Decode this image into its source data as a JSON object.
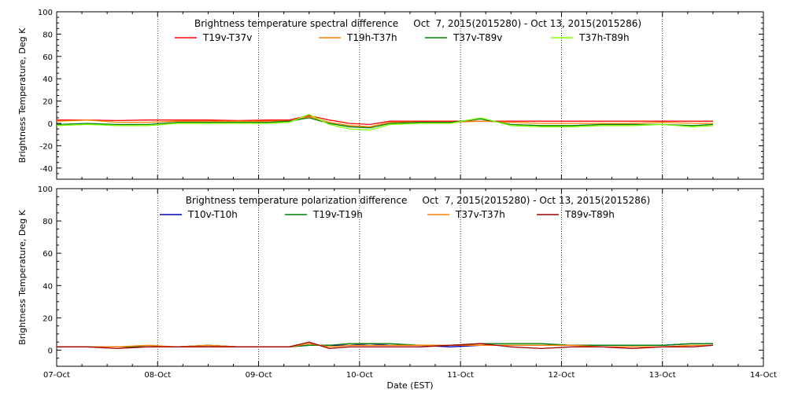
{
  "chart_data": [
    {
      "type": "line",
      "title": "Brightness temperature spectral difference     Oct  7, 2015(2015280) - Oct 13, 2015(2015286)",
      "ylabel": "Brightness Temperature, Deg K",
      "xlabel": "",
      "ylim": [
        -50,
        100
      ],
      "yticks": [
        -40,
        -20,
        0,
        20,
        40,
        60,
        80,
        100
      ],
      "xlim": [
        0,
        7
      ],
      "x_tick_labels": [
        "07-Oct",
        "08-Oct",
        "09-Oct",
        "10-Oct",
        "11-Oct",
        "12-Oct",
        "13-Oct",
        "14-Oct"
      ],
      "grid": "vertical dotted at day boundaries",
      "legend_position": "top",
      "x_units": "days since 07-Oct 00:00",
      "series": [
        {
          "name": "T19v-T37v",
          "color": "#ff0000",
          "x": [
            0,
            0.3,
            0.6,
            0.9,
            1.2,
            1.5,
            1.8,
            2.1,
            2.3,
            2.5,
            2.7,
            2.9,
            3.1,
            3.3,
            3.6,
            3.9,
            4.2,
            4.5,
            4.8,
            5.1,
            5.4,
            5.7,
            6.0,
            6.3,
            6.5
          ],
          "y": [
            3,
            3,
            2.5,
            3,
            3,
            3,
            2.5,
            3,
            3,
            7,
            3,
            0,
            -1,
            2,
            2,
            2,
            2,
            2,
            2,
            2,
            2,
            2,
            2,
            2,
            2
          ]
        },
        {
          "name": "T19h-T37h",
          "color": "#ff8000",
          "x": [
            0,
            0.3,
            0.6,
            0.9,
            1.2,
            1.5,
            1.8,
            2.1,
            2.3,
            2.5,
            2.7,
            2.9,
            3.1,
            3.3,
            3.6,
            3.9,
            4.2,
            4.5,
            4.8,
            5.1,
            5.4,
            5.7,
            6.0,
            6.3,
            6.5
          ],
          "y": [
            2,
            3,
            1,
            1,
            2,
            2,
            2,
            2,
            2,
            6,
            1,
            -2,
            -3,
            1,
            1,
            1,
            2,
            1,
            0,
            0,
            0,
            0,
            1,
            0,
            0
          ]
        },
        {
          "name": "T37v-T89v",
          "color": "#008000",
          "x": [
            0,
            0.3,
            0.6,
            0.9,
            1.2,
            1.5,
            1.8,
            2.1,
            2.3,
            2.5,
            2.7,
            2.9,
            3.1,
            3.3,
            3.6,
            3.9,
            4.2,
            4.5,
            4.8,
            5.1,
            5.4,
            5.7,
            6.0,
            6.3,
            6.5
          ],
          "y": [
            -1,
            0,
            -1,
            -1,
            1,
            1,
            1,
            1,
            2,
            5,
            0,
            -3,
            -4,
            0,
            1,
            1,
            4,
            -1,
            -2,
            -2,
            -1,
            -1,
            -1,
            -2,
            -1
          ]
        },
        {
          "name": "T37h-T89h",
          "color": "#80ff00",
          "x": [
            0,
            0.3,
            0.6,
            0.9,
            1.2,
            1.5,
            1.8,
            2.1,
            2.3,
            2.5,
            2.7,
            2.9,
            3.1,
            3.3,
            3.6,
            3.9,
            4.2,
            4.5,
            4.8,
            5.1,
            5.4,
            5.7,
            6.0,
            6.3,
            6.5
          ],
          "y": [
            -2,
            -1,
            -2,
            -2,
            0,
            0,
            0,
            0,
            1,
            8,
            -1,
            -5,
            -6,
            -1,
            0,
            0,
            5,
            -2,
            -3,
            -3,
            -2,
            -2,
            -1,
            -3,
            -2
          ]
        }
      ]
    },
    {
      "type": "line",
      "title": "Brightness temperature polarization difference     Oct  7, 2015(2015280) - Oct 13, 2015(2015286)",
      "ylabel": "Brightness Temperature, Deg K",
      "xlabel": "Date (EST)",
      "ylim": [
        -10,
        100
      ],
      "yticks": [
        0,
        20,
        40,
        60,
        80,
        100
      ],
      "xlim": [
        0,
        7
      ],
      "x_tick_labels": [
        "07-Oct",
        "08-Oct",
        "09-Oct",
        "10-Oct",
        "11-Oct",
        "12-Oct",
        "13-Oct",
        "14-Oct"
      ],
      "grid": "vertical dotted at day boundaries",
      "legend_position": "top",
      "x_units": "days since 07-Oct 00:00",
      "series": [
        {
          "name": "T10v-T10h",
          "color": "#0000c0",
          "x": [
            0,
            0.3,
            0.6,
            0.9,
            1.2,
            1.5,
            1.8,
            2.1,
            2.3,
            2.5,
            2.7,
            2.9,
            3.1,
            3.3,
            3.6,
            3.9,
            4.2,
            4.5,
            4.8,
            5.1,
            5.4,
            5.7,
            6.0,
            6.3,
            6.5
          ],
          "y": [
            2,
            2,
            2,
            2,
            2,
            3,
            2,
            2,
            2,
            3,
            3,
            3,
            4,
            3,
            3,
            2,
            3,
            3,
            3,
            3,
            3,
            3,
            3,
            4,
            4
          ]
        },
        {
          "name": "T19v-T19h",
          "color": "#008000",
          "x": [
            0,
            0.3,
            0.6,
            0.9,
            1.2,
            1.5,
            1.8,
            2.1,
            2.3,
            2.5,
            2.7,
            2.9,
            3.1,
            3.3,
            3.6,
            3.9,
            4.2,
            4.5,
            4.8,
            5.1,
            5.4,
            5.7,
            6.0,
            6.3,
            6.5
          ],
          "y": [
            2,
            2,
            2,
            2,
            2,
            3,
            2,
            2,
            2,
            3,
            3,
            4,
            4,
            4,
            3,
            3,
            4,
            4,
            4,
            3,
            3,
            3,
            3,
            4,
            4
          ]
        },
        {
          "name": "T37v-T37h",
          "color": "#ff8000",
          "x": [
            0,
            0.3,
            0.6,
            0.9,
            1.2,
            1.5,
            1.8,
            2.1,
            2.3,
            2.5,
            2.7,
            2.9,
            3.1,
            3.3,
            3.6,
            3.9,
            4.2,
            4.5,
            4.8,
            5.1,
            5.4,
            5.7,
            6.0,
            6.3,
            6.5
          ],
          "y": [
            2,
            2,
            2,
            3,
            2,
            3,
            2,
            2,
            2,
            4,
            2,
            3,
            3,
            3,
            3,
            3,
            3,
            3,
            3,
            3,
            2,
            2,
            2,
            3,
            3
          ]
        },
        {
          "name": "T89v-T89h",
          "color": "#a00000",
          "x": [
            0,
            0.3,
            0.6,
            0.9,
            1.2,
            1.5,
            1.8,
            2.1,
            2.3,
            2.5,
            2.7,
            2.9,
            3.1,
            3.3,
            3.6,
            3.9,
            4.2,
            4.5,
            4.8,
            5.1,
            5.4,
            5.7,
            6.0,
            6.3,
            6.5
          ],
          "y": [
            2,
            2,
            1,
            2,
            2,
            2,
            2,
            2,
            2,
            5,
            1,
            2,
            2,
            2,
            2,
            3,
            4,
            2,
            1,
            2,
            2,
            1,
            2,
            2,
            3
          ]
        }
      ]
    }
  ]
}
